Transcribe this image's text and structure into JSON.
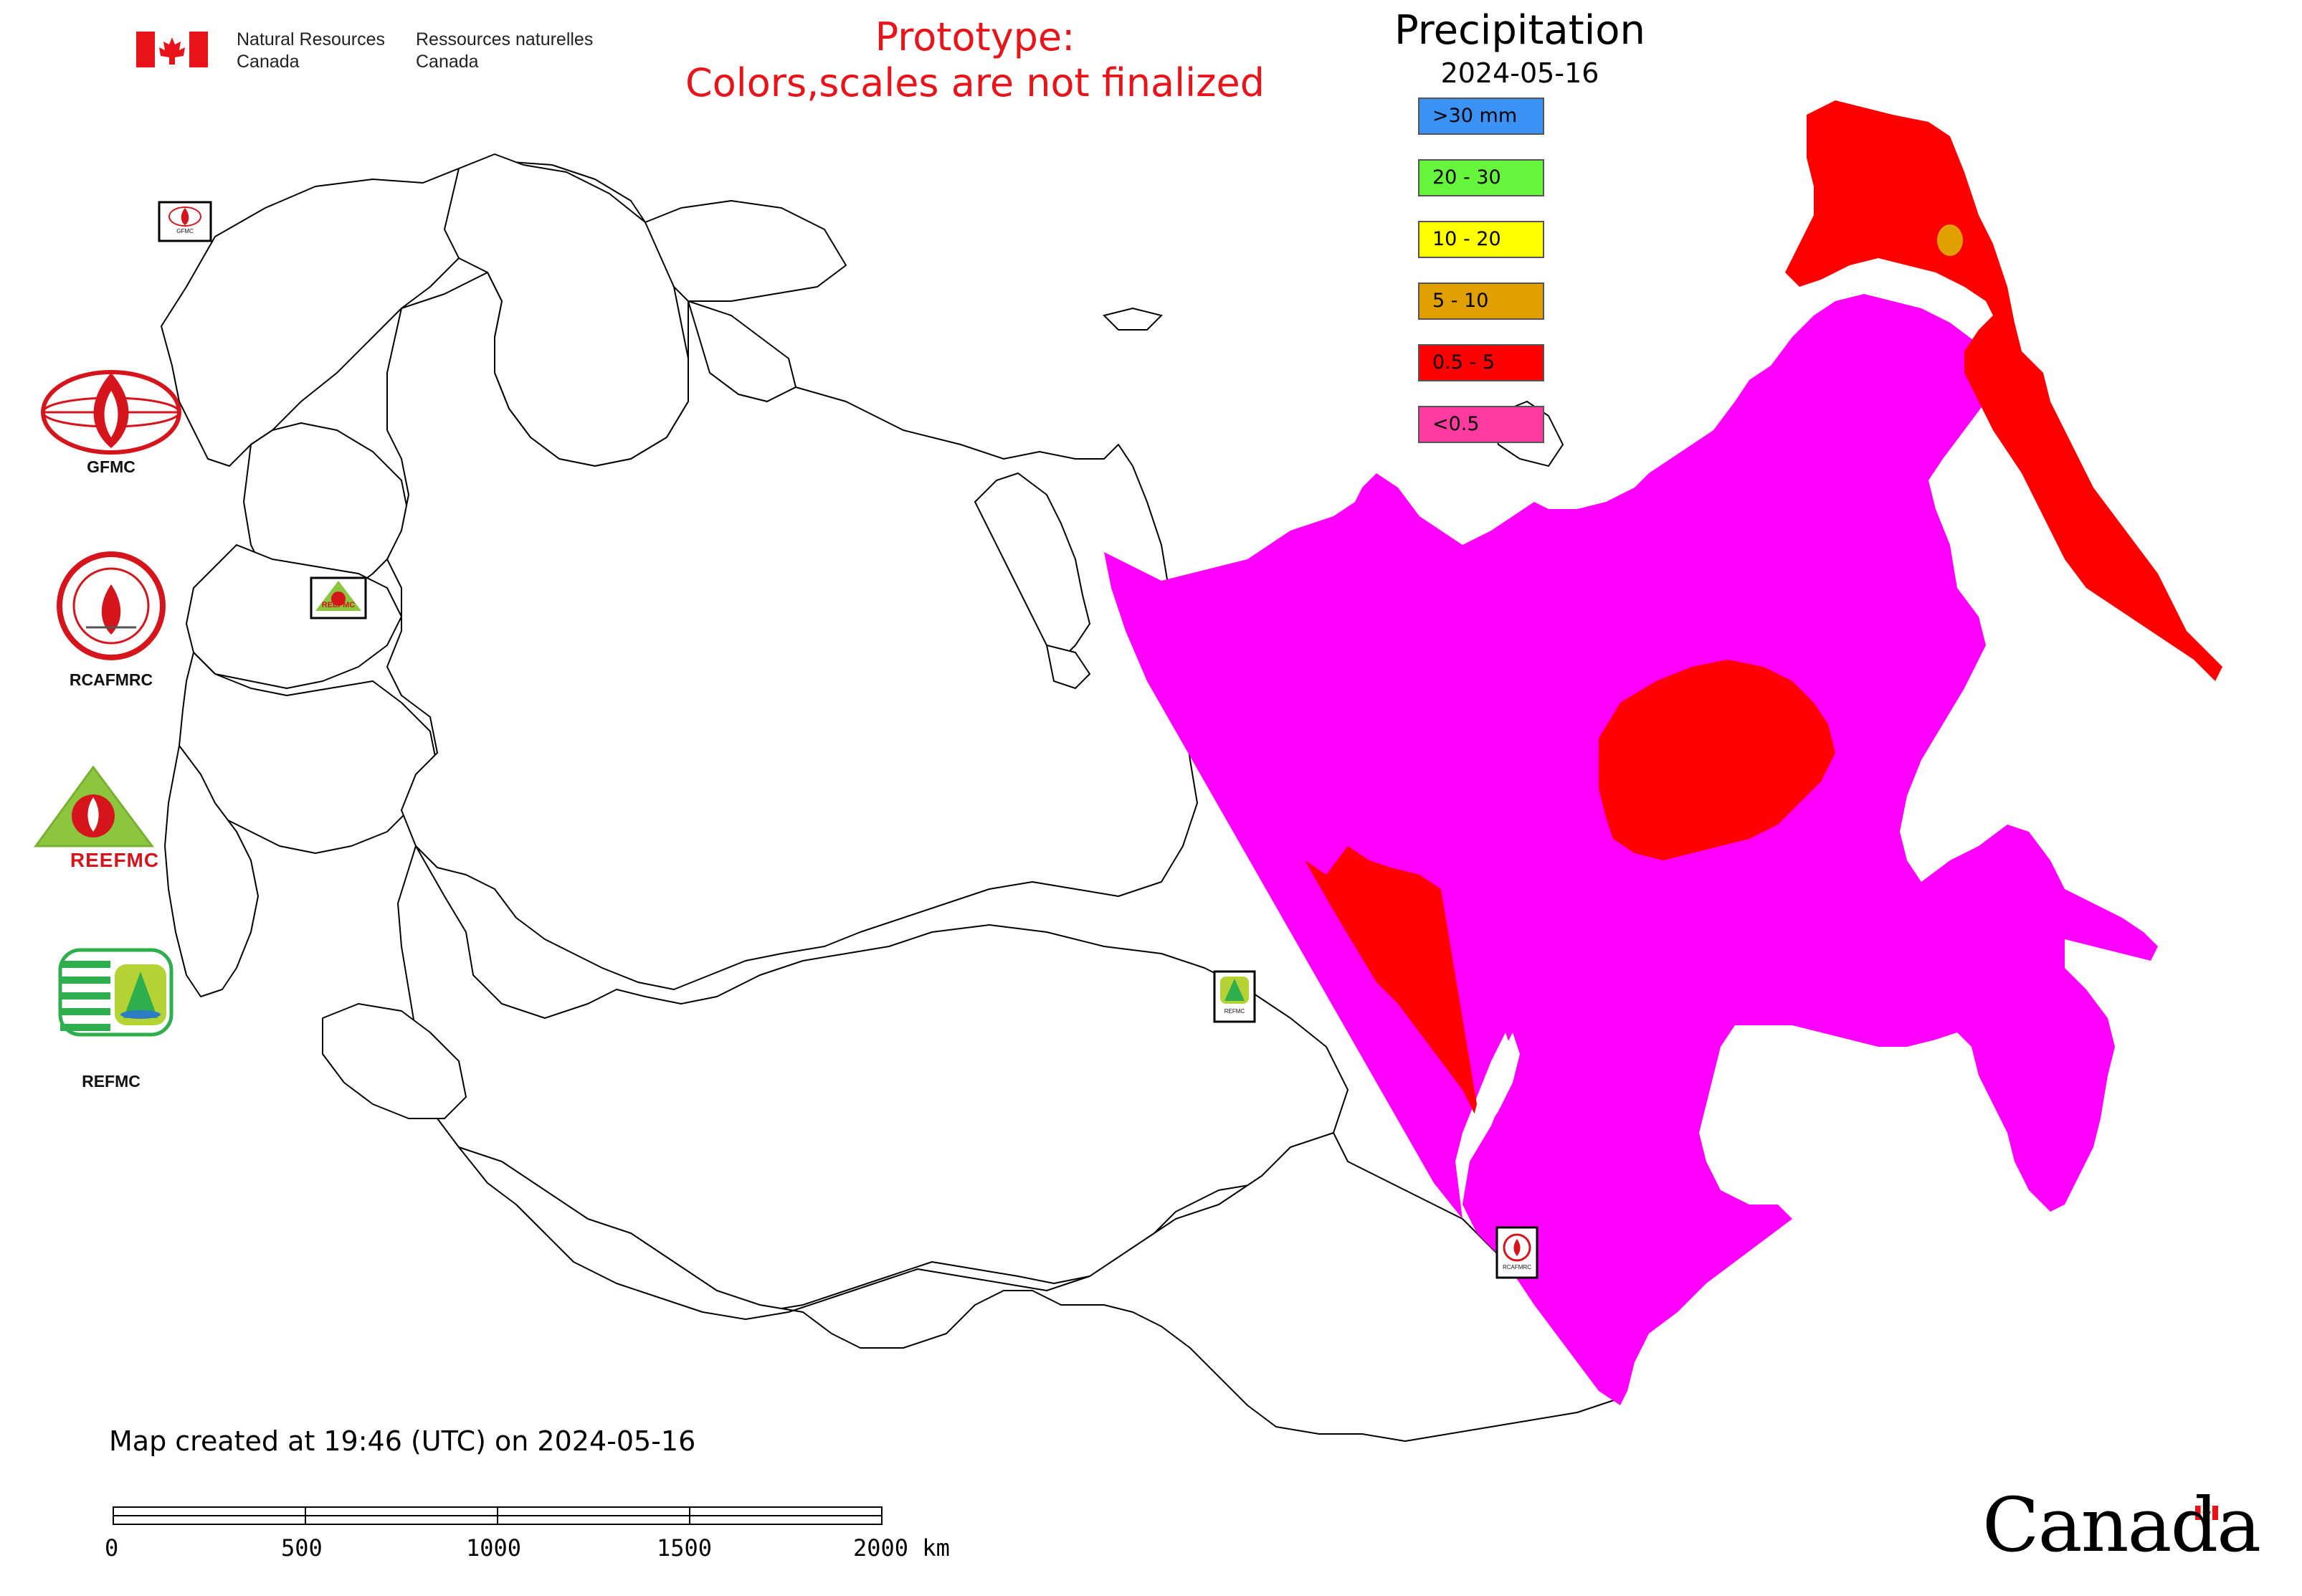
{
  "header": {
    "agency_en": [
      "Natural Resources",
      "Canada"
    ],
    "agency_fr": [
      "Ressources naturelles",
      "Canada"
    ],
    "prototype_note": [
      "Prototype:",
      "Colors,scales are not finalized"
    ]
  },
  "legend": {
    "title": "Precipitation",
    "date": "2024-05-16",
    "items": [
      {
        "label": ">30 mm",
        "color": "#3a92f5"
      },
      {
        "label": "20 - 30",
        "color": "#66f53a"
      },
      {
        "label": "10 - 20",
        "color": "#ffff00"
      },
      {
        "label": "5 - 10",
        "color": "#e0a000"
      },
      {
        "label": "0.5 - 5",
        "color": "#ff0000"
      },
      {
        "label": "<0.5",
        "color": "#ff3aa0"
      }
    ]
  },
  "map": {
    "precip_fill_colors": {
      "dominant": "#ff00ff",
      "secondary": "#ff0000",
      "spot": "#e0a000"
    }
  },
  "side_logos": {
    "gfmc": "GFMC",
    "rcafmrc": "RCAFMRC",
    "reefmc_text": "REEFMC",
    "refmc": "REFMC",
    "badge_texts": {
      "gfmc": "GFMC",
      "reefmc": "REEFMC",
      "refmc": "REFMC",
      "rcafmrc": "RCAFMRC"
    }
  },
  "footer": {
    "created": "Map created at 19:46 (UTC) on 2024-05-16"
  },
  "scale_bar": {
    "labels": [
      "0",
      "500",
      "1000",
      "1500",
      "2000 km"
    ]
  },
  "wordmark": "Canada"
}
